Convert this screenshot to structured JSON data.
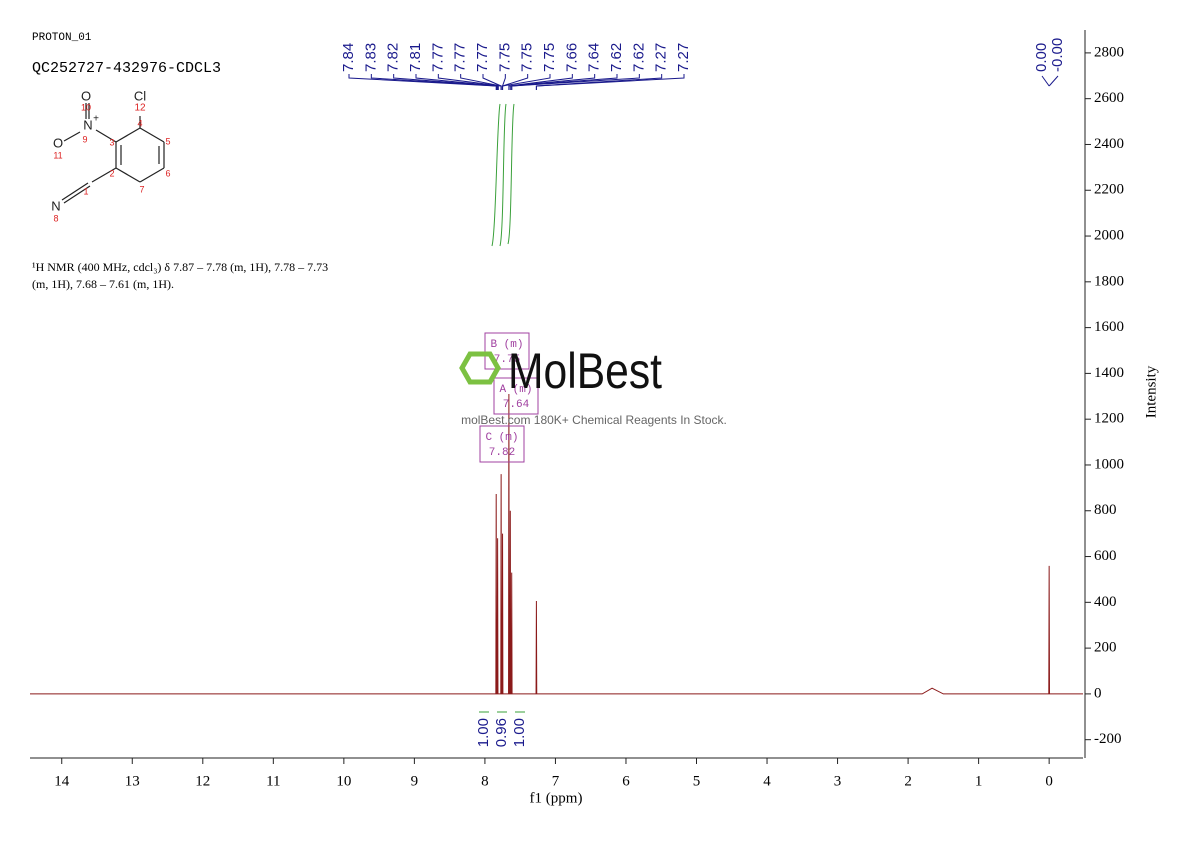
{
  "header": {
    "title": "PROTON_01",
    "sample": "QC252727-432976-CDCL3"
  },
  "description": [
    "¹H NMR (400 MHz, cdcl₃) δ 7.87 – 7.78 (m, 1H), 7.78 – 7.73",
    "(m, 1H), 7.68 – 7.61 (m, 1H)."
  ],
  "structure": {
    "atoms": [
      "Cl",
      "12",
      "4",
      "5",
      "6",
      "7",
      "2",
      "3",
      "N",
      "+",
      "9",
      "O",
      "10",
      "O",
      "11",
      "1",
      "N",
      "8"
    ]
  },
  "watermark": {
    "brand": "MolBest",
    "tagline": "molBest.com 180K+ Chemical Reagents In Stock."
  },
  "chart_data": {
    "type": "line",
    "xlabel": "f1 (ppm)",
    "ylabel": "Intensity",
    "xlim": [
      14.45,
      -0.48
    ],
    "ylim": [
      -280,
      2900
    ],
    "xticks": [
      14,
      13,
      12,
      11,
      10,
      9,
      8,
      7,
      6,
      5,
      4,
      3,
      2,
      1,
      0
    ],
    "yticks": [
      -200,
      0,
      200,
      400,
      600,
      800,
      1000,
      1200,
      1400,
      1600,
      1800,
      2000,
      2200,
      2400,
      2600,
      2800
    ],
    "grid": false,
    "color": "#8b1a1a",
    "x": [
      14.45,
      7.9,
      7.845,
      7.84,
      7.835,
      7.825,
      7.82,
      7.815,
      7.775,
      7.77,
      7.765,
      7.755,
      7.75,
      7.745,
      7.665,
      7.66,
      7.655,
      7.645,
      7.64,
      7.635,
      7.625,
      7.62,
      7.615,
      7.275,
      7.27,
      7.265,
      1.8,
      1.66,
      1.5,
      0.005,
      0,
      -0.005,
      -0.48
    ],
    "values": [
      0,
      0,
      0,
      873,
      0,
      0,
      680,
      0,
      0,
      960,
      0,
      0,
      700,
      0,
      0,
      1310,
      0,
      0,
      800,
      0,
      0,
      530,
      0,
      0,
      406,
      0,
      0,
      25,
      0,
      0,
      559,
      0,
      0
    ],
    "peak_labels": [
      "7.84",
      "7.83",
      "7.82",
      "7.81",
      "7.77",
      "7.77",
      "7.77",
      "7.75",
      "7.75",
      "7.75",
      "7.66",
      "7.64",
      "7.62",
      "7.62",
      "7.27",
      "7.27"
    ],
    "ref_labels": [
      "0.00",
      "-0.00"
    ],
    "integrals": [
      "1.00",
      "0.96",
      "1.00"
    ],
    "multiplets": [
      {
        "name": "B (m)",
        "shift": "7.75"
      },
      {
        "name": "A (m)",
        "shift": "7.64"
      },
      {
        "name": "C (m)",
        "shift": "7.82"
      }
    ]
  }
}
